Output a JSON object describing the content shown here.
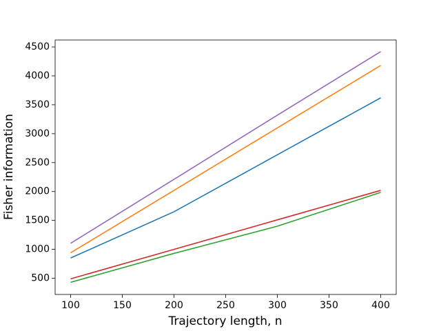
{
  "chart_data": {
    "type": "line",
    "xlabel": "Trajectory length, n",
    "ylabel": "Fisher information",
    "x": [
      100,
      200,
      300,
      400
    ],
    "series": [
      {
        "color": "#1f77b4",
        "values": [
          850,
          1650,
          2635,
          3620
        ]
      },
      {
        "color": "#ff7f0e",
        "values": [
          940,
          2020,
          3100,
          4180
        ]
      },
      {
        "color": "#2ca02c",
        "values": [
          430,
          930,
          1400,
          1985
        ]
      },
      {
        "color": "#d62728",
        "values": [
          490,
          1000,
          1510,
          2020
        ]
      },
      {
        "color": "#9467bd",
        "values": [
          1105,
          2210,
          3320,
          4420
        ]
      }
    ],
    "xlim": [
      85,
      415
    ],
    "xticks": [
      100,
      150,
      200,
      250,
      300,
      350,
      400
    ],
    "ylim": [
      220,
      4620
    ],
    "yticks": [
      500,
      1000,
      1500,
      2000,
      2500,
      3000,
      3500,
      4000,
      4500
    ],
    "grid": false
  }
}
